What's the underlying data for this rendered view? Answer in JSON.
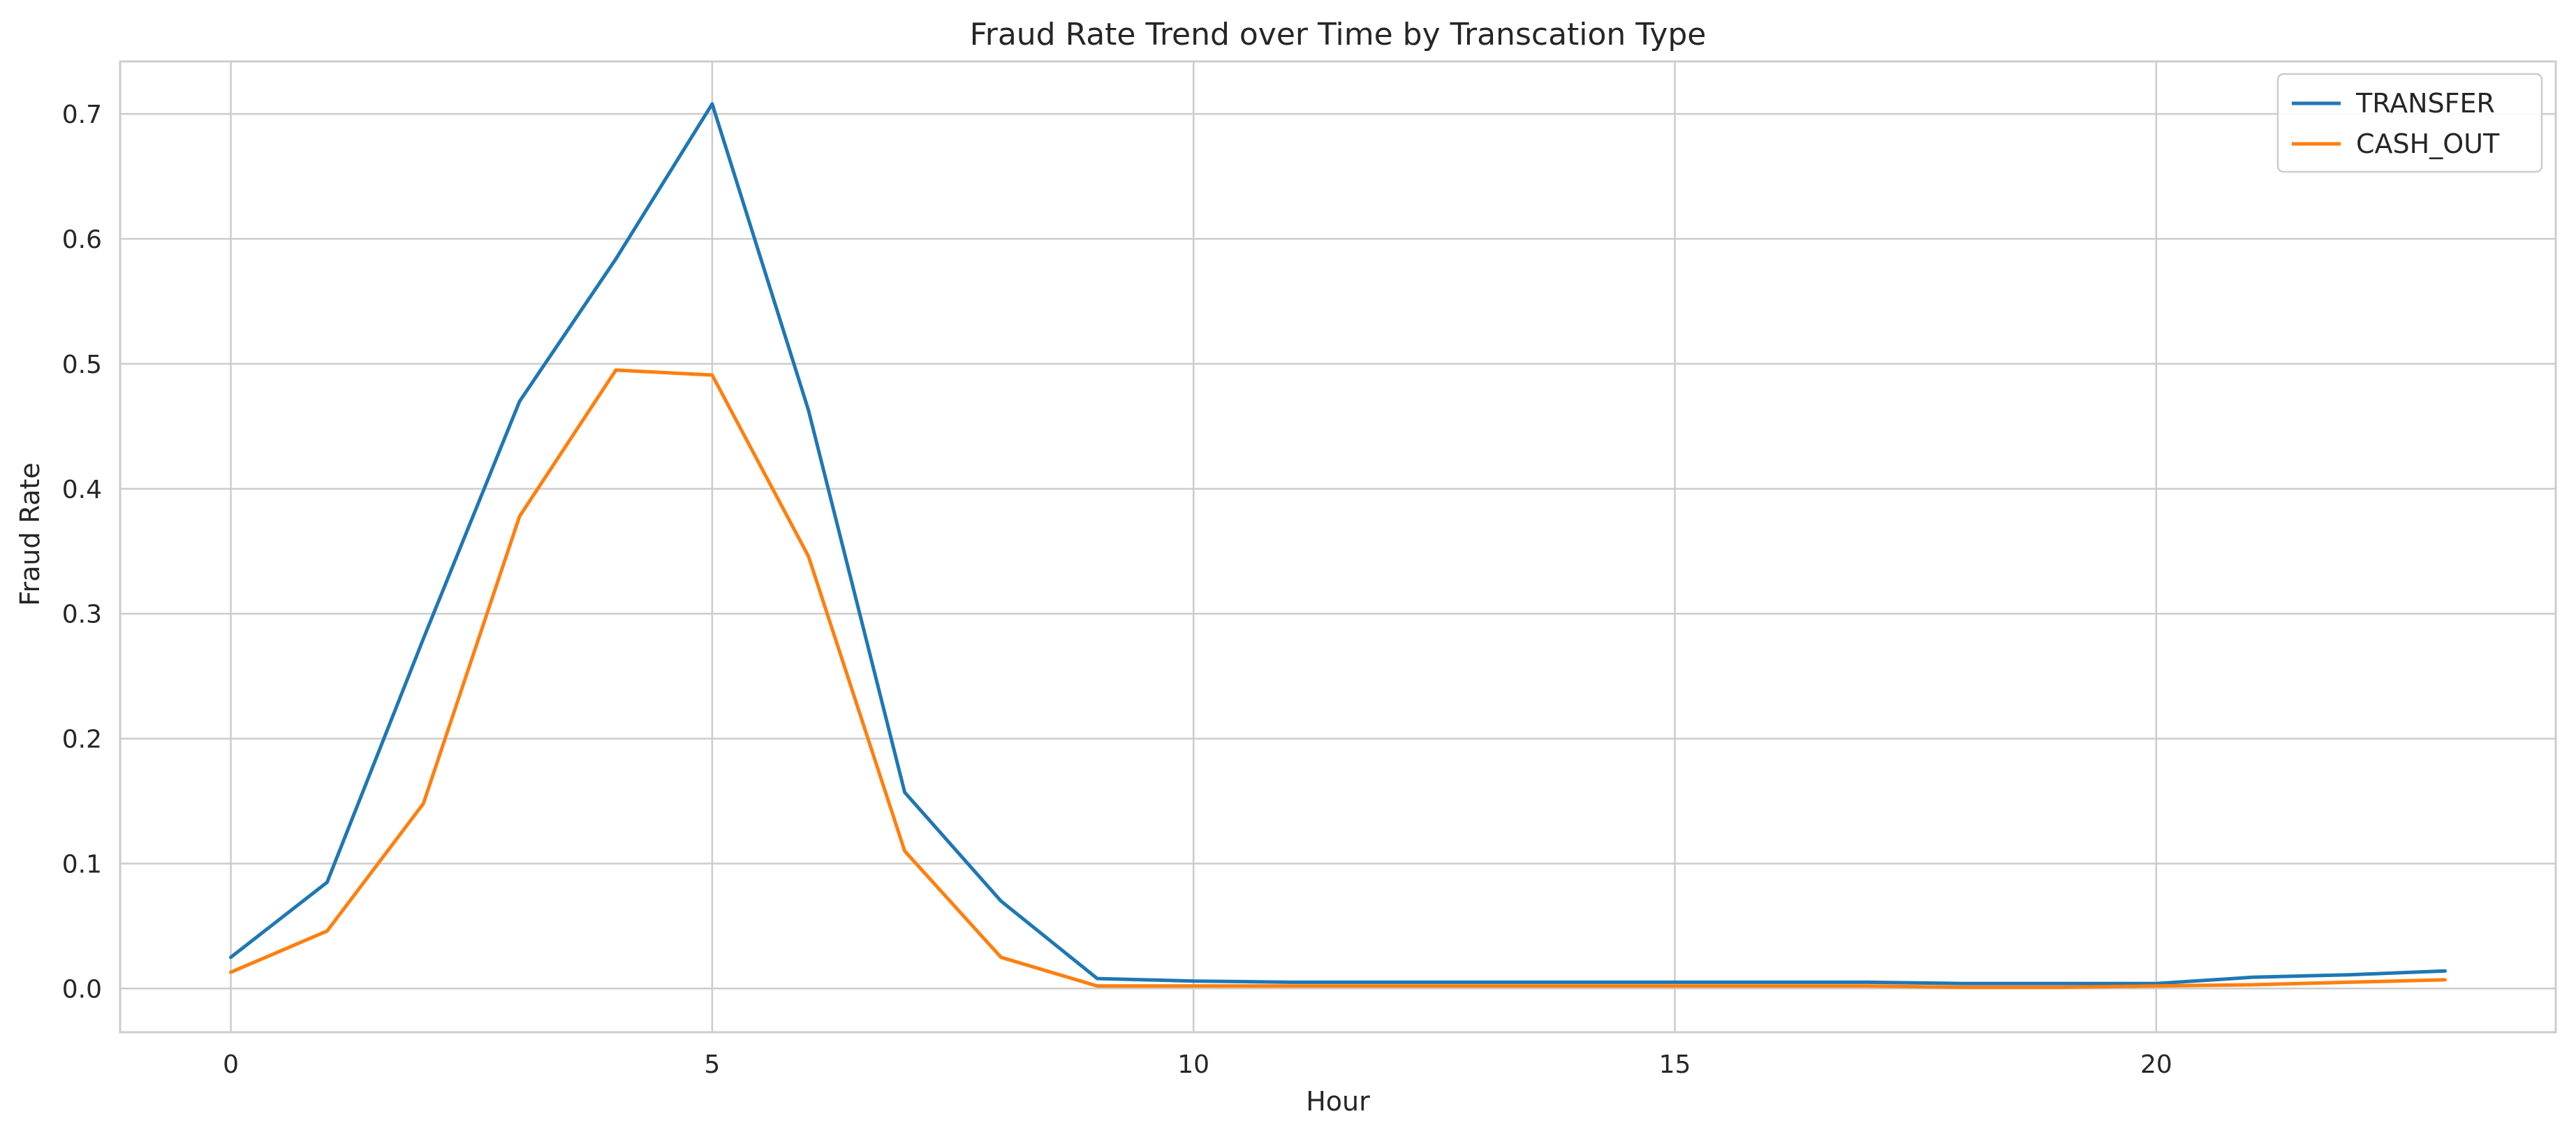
{
  "chart_data": {
    "type": "line",
    "title": "Fraud Rate Trend over Time by Transcation Type",
    "xlabel": "Hour",
    "ylabel": "Fraud Rate",
    "xlim": [
      -1.15,
      24.15
    ],
    "ylim": [
      -0.035,
      0.742
    ],
    "x_ticks": [
      0,
      5,
      10,
      15,
      20
    ],
    "y_ticks": [
      0.0,
      0.1,
      0.2,
      0.3,
      0.4,
      0.5,
      0.6,
      0.7
    ],
    "grid": true,
    "legend_position": "top-right",
    "x": [
      0,
      1,
      2,
      3,
      4,
      5,
      6,
      7,
      8,
      9,
      10,
      11,
      12,
      13,
      14,
      15,
      16,
      17,
      18,
      19,
      20,
      21,
      22,
      23
    ],
    "series": [
      {
        "name": "TRANSFER",
        "color": "#1f77b4",
        "values": [
          0.025,
          0.085,
          0.28,
          0.47,
          0.584,
          0.708,
          0.463,
          0.157,
          0.07,
          0.008,
          0.006,
          0.005,
          0.005,
          0.005,
          0.005,
          0.005,
          0.005,
          0.005,
          0.004,
          0.004,
          0.004,
          0.009,
          0.011,
          0.014
        ]
      },
      {
        "name": "CASH_OUT",
        "color": "#ff7f0e",
        "values": [
          0.013,
          0.046,
          0.148,
          0.378,
          0.495,
          0.491,
          0.346,
          0.11,
          0.025,
          0.002,
          0.002,
          0.002,
          0.002,
          0.002,
          0.002,
          0.002,
          0.002,
          0.002,
          0.001,
          0.001,
          0.002,
          0.003,
          0.005,
          0.007
        ]
      }
    ]
  }
}
